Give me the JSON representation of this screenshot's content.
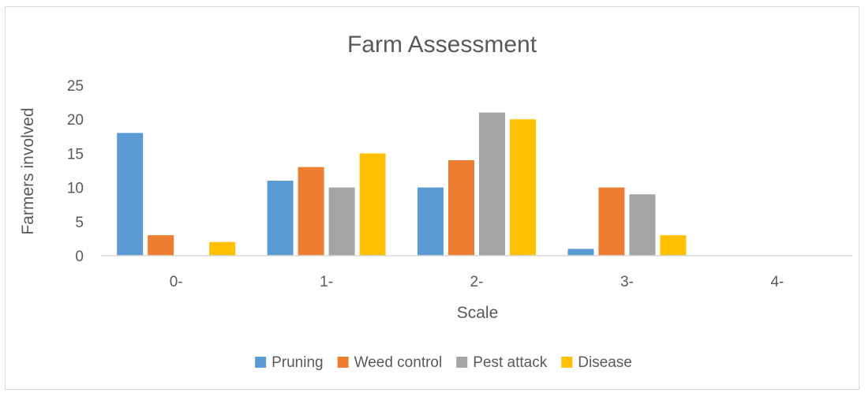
{
  "chart_data": {
    "type": "bar",
    "title": "Farm Assessment",
    "xlabel": "Scale",
    "ylabel": "Farmers involved",
    "categories": [
      "0-",
      "1-",
      "2-",
      "3-",
      "4-"
    ],
    "ylim": [
      0,
      25
    ],
    "yticks": [
      "0",
      "5",
      "10",
      "15",
      "20",
      "25"
    ],
    "grid": false,
    "legend": "bottom",
    "series": [
      {
        "name": "Pruning",
        "color": "#5b9bd5",
        "values": [
          18,
          11,
          10,
          1,
          0
        ]
      },
      {
        "name": "Weed control",
        "color": "#ed7d31",
        "values": [
          3,
          13,
          14,
          10,
          0
        ]
      },
      {
        "name": "Pest attack",
        "color": "#a5a5a5",
        "values": [
          0,
          10,
          21,
          9,
          0
        ]
      },
      {
        "name": "Disease",
        "color": "#ffc000",
        "values": [
          2,
          15,
          20,
          3,
          0
        ]
      }
    ]
  }
}
